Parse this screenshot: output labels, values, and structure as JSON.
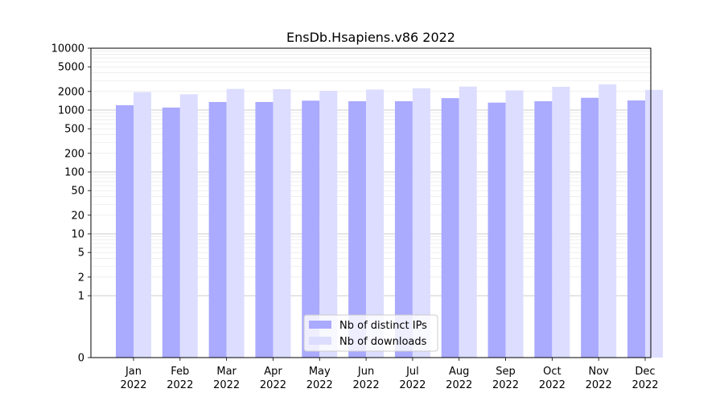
{
  "chart_data": {
    "type": "bar",
    "title": "EnsDb.Hsapiens.v86 2022",
    "xlabel": "",
    "ylabel": "",
    "yscale": "symlog",
    "ylim": [
      0,
      10000
    ],
    "yticks": [
      {
        "value": 0,
        "label": "0"
      },
      {
        "value": 1,
        "label": "1"
      },
      {
        "value": 2,
        "label": "2"
      },
      {
        "value": 5,
        "label": "5"
      },
      {
        "value": 10,
        "label": "10"
      },
      {
        "value": 20,
        "label": "20"
      },
      {
        "value": 50,
        "label": "50"
      },
      {
        "value": 100,
        "label": "100"
      },
      {
        "value": 200,
        "label": "200"
      },
      {
        "value": 500,
        "label": "500"
      },
      {
        "value": 1000,
        "label": "1000"
      },
      {
        "value": 2000,
        "label": "2000"
      },
      {
        "value": 5000,
        "label": "5000"
      },
      {
        "value": 10000,
        "label": "10000"
      }
    ],
    "categories": [
      {
        "month": "Jan",
        "year": "2022"
      },
      {
        "month": "Feb",
        "year": "2022"
      },
      {
        "month": "Mar",
        "year": "2022"
      },
      {
        "month": "Apr",
        "year": "2022"
      },
      {
        "month": "May",
        "year": "2022"
      },
      {
        "month": "Jun",
        "year": "2022"
      },
      {
        "month": "Jul",
        "year": "2022"
      },
      {
        "month": "Aug",
        "year": "2022"
      },
      {
        "month": "Sep",
        "year": "2022"
      },
      {
        "month": "Oct",
        "year": "2022"
      },
      {
        "month": "Nov",
        "year": "2022"
      },
      {
        "month": "Dec",
        "year": "2022"
      }
    ],
    "series": [
      {
        "name": "Nb of distinct IPs",
        "color": "#aaaaff",
        "values": [
          1200,
          1100,
          1350,
          1350,
          1420,
          1390,
          1390,
          1560,
          1320,
          1390,
          1580,
          1430
        ]
      },
      {
        "name": "Nb of downloads",
        "color": "#ddddff",
        "values": [
          1950,
          1800,
          2200,
          2180,
          2050,
          2150,
          2250,
          2400,
          2080,
          2380,
          2600,
          2120
        ]
      }
    ],
    "grid": true,
    "legend": "bottom-center"
  }
}
